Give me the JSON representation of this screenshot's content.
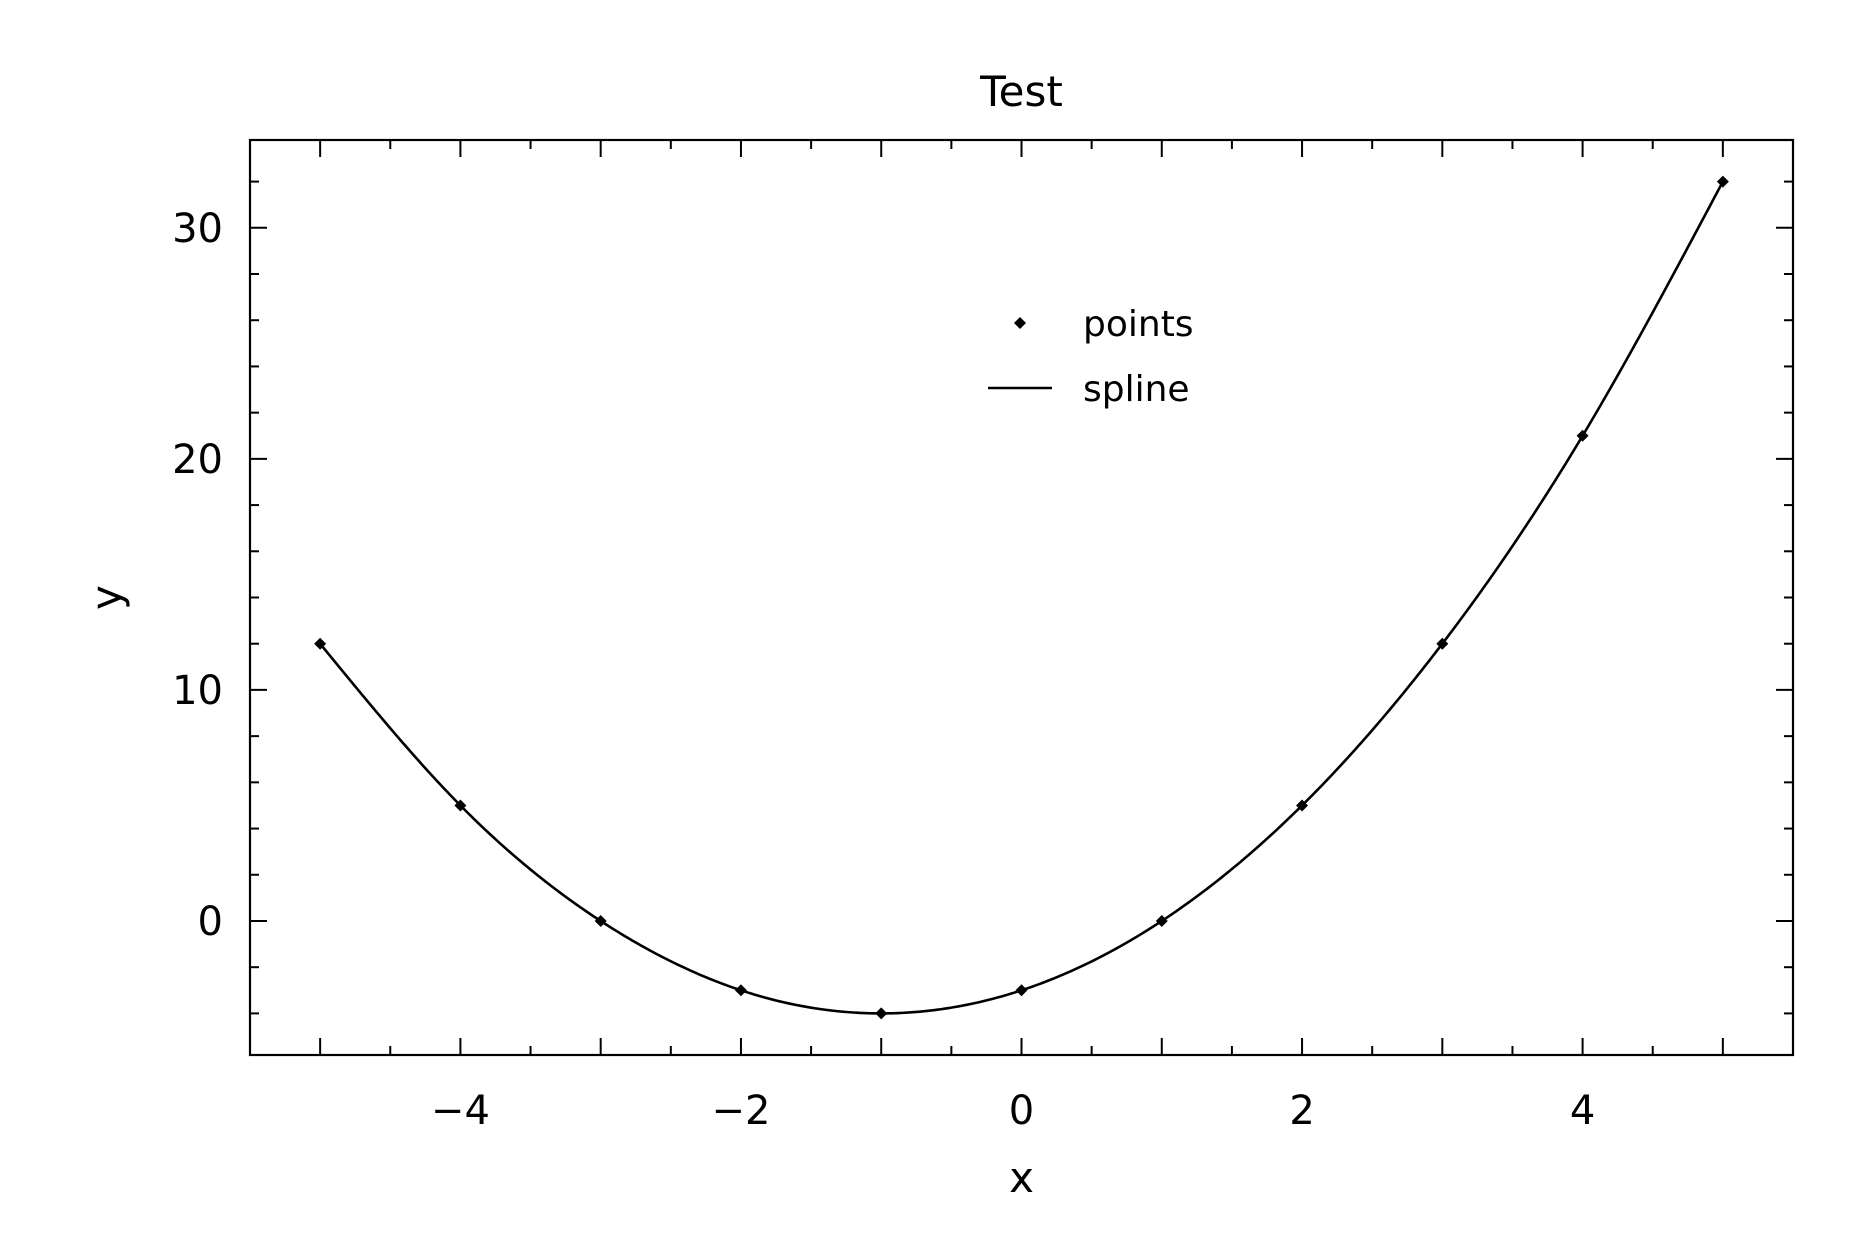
{
  "chart_data": {
    "type": "line",
    "title": "Test",
    "xlabel": "x",
    "ylabel": "y",
    "xlim": [
      -5.5,
      5.5
    ],
    "ylim": [
      -5.8,
      33.8
    ],
    "xticks": [
      -4,
      -2,
      0,
      2,
      4
    ],
    "xtick_labels": [
      "−4",
      "−2",
      "0",
      "2",
      "4"
    ],
    "yticks": [
      0,
      10,
      20,
      30
    ],
    "ytick_labels": [
      "0",
      "10",
      "20",
      "30"
    ],
    "grid": false,
    "legend_position": "top-center",
    "series": [
      {
        "name": "points",
        "kind": "scatter",
        "marker": "diamond",
        "color": "#000000",
        "x": [
          -5,
          -4,
          -3,
          -2,
          -1,
          0,
          1,
          2,
          3,
          4,
          5
        ],
        "y": [
          12,
          5,
          0,
          -3,
          -4,
          -3,
          0,
          5,
          12,
          21,
          32
        ]
      },
      {
        "name": "spline",
        "kind": "line",
        "color": "#000000",
        "x": [
          -5,
          -4,
          -3,
          -2,
          -1,
          0,
          1,
          2,
          3,
          4,
          5
        ],
        "y": [
          12,
          5,
          0,
          -3,
          -4,
          -3,
          0,
          5,
          12,
          21,
          32
        ]
      }
    ]
  }
}
